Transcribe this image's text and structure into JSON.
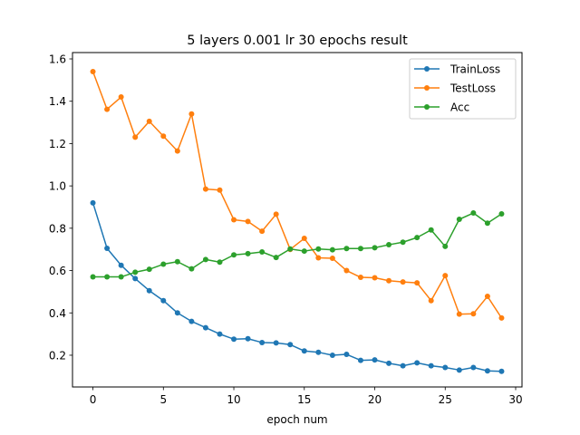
{
  "chart_data": {
    "type": "line",
    "title": "5 layers 0.001 lr 30 epochs result",
    "xlabel": "epoch num",
    "ylabel": "",
    "xlim": [
      -1.45,
      30.45
    ],
    "ylim": [
      0.05,
      1.63
    ],
    "xticks": [
      0,
      5,
      10,
      15,
      20,
      25,
      30
    ],
    "yticks": [
      0.2,
      0.4,
      0.6,
      0.8,
      1.0,
      1.2,
      1.4,
      1.6
    ],
    "grid": false,
    "legend_position": "top-right",
    "x": [
      0,
      1,
      2,
      3,
      4,
      5,
      6,
      7,
      8,
      9,
      10,
      11,
      12,
      13,
      14,
      15,
      16,
      17,
      18,
      19,
      20,
      21,
      22,
      23,
      24,
      25,
      26,
      27,
      28,
      29
    ],
    "series": [
      {
        "name": "TrainLoss",
        "color": "#1f77b4",
        "values": [
          0.92,
          0.705,
          0.625,
          0.562,
          0.505,
          0.458,
          0.4,
          0.36,
          0.33,
          0.3,
          0.276,
          0.278,
          0.26,
          0.258,
          0.25,
          0.22,
          0.214,
          0.2,
          0.204,
          0.176,
          0.178,
          0.162,
          0.15,
          0.164,
          0.15,
          0.142,
          0.13,
          0.142,
          0.126,
          0.124
        ]
      },
      {
        "name": "TestLoss",
        "color": "#ff7f0e",
        "values": [
          1.54,
          1.362,
          1.42,
          1.23,
          1.305,
          1.235,
          1.165,
          1.34,
          0.985,
          0.98,
          0.84,
          0.832,
          0.786,
          0.866,
          0.7,
          0.752,
          0.66,
          0.658,
          0.6,
          0.568,
          0.566,
          0.552,
          0.546,
          0.542,
          0.458,
          0.576,
          0.394,
          0.396,
          0.478,
          0.376
        ]
      },
      {
        "name": "Acc",
        "color": "#2ca02c",
        "values": [
          0.57,
          0.57,
          0.57,
          0.592,
          0.606,
          0.63,
          0.642,
          0.608,
          0.652,
          0.64,
          0.674,
          0.68,
          0.688,
          0.662,
          0.702,
          0.692,
          0.702,
          0.698,
          0.704,
          0.704,
          0.708,
          0.722,
          0.734,
          0.756,
          0.792,
          0.714,
          0.842,
          0.872,
          0.824,
          0.868
        ]
      }
    ]
  }
}
